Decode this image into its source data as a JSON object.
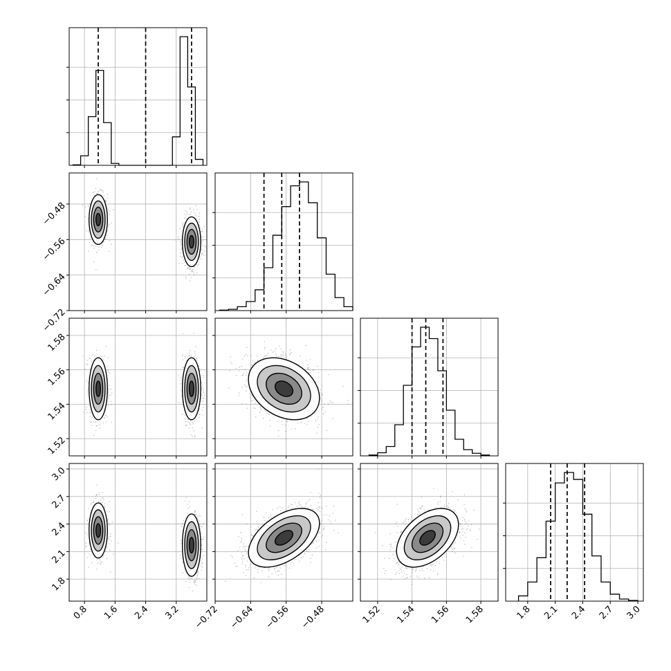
{
  "chart_data": {
    "type": "corner",
    "parameters": 4,
    "quantile_lines": "dashed",
    "grid": true,
    "axes": {
      "p0": {
        "ticks": [
          0.8,
          1.6,
          2.4,
          3.2
        ],
        "tick_labels": [
          "0.8",
          "1.6",
          "2.4",
          "3.2"
        ],
        "range": [
          0.4,
          4.0
        ]
      },
      "p1": {
        "ticks": [
          -0.72,
          -0.64,
          -0.56,
          -0.48
        ],
        "tick_labels": [
          "−0.72",
          "−0.64",
          "−0.56",
          "−0.48"
        ],
        "range": [
          -0.72,
          -0.41
        ]
      },
      "p2": {
        "ticks": [
          1.52,
          1.54,
          1.56,
          1.58
        ],
        "tick_labels": [
          "1.52",
          "1.54",
          "1.56",
          "1.58"
        ],
        "range": [
          1.51,
          1.59
        ]
      },
      "p3": {
        "ticks": [
          1.8,
          2.1,
          2.4,
          2.7,
          3.0
        ],
        "tick_labels": [
          "1.8",
          "2.1",
          "2.4",
          "2.7",
          "3.0"
        ],
        "range": [
          1.56,
          3.06
        ]
      }
    },
    "diagonal": [
      {
        "param": "p0",
        "bin_edges": [
          0.5,
          0.7,
          0.9,
          1.1,
          1.3,
          1.5,
          1.7,
          1.9,
          2.1,
          2.3,
          2.5,
          2.7,
          2.9,
          3.1,
          3.3,
          3.5,
          3.7,
          3.9
        ],
        "counts": [
          2,
          40,
          205,
          400,
          180,
          8,
          0,
          0,
          0,
          0,
          0,
          0,
          0,
          120,
          542,
          330,
          25
        ],
        "quantiles": [
          1.16,
          2.4,
          3.6
        ]
      },
      {
        "param": "p1",
        "bin_edges": [
          -0.71,
          -0.69,
          -0.67,
          -0.65,
          -0.63,
          -0.61,
          -0.59,
          -0.57,
          -0.55,
          -0.53,
          -0.51,
          -0.49,
          -0.47,
          -0.45,
          -0.43,
          -0.41
        ],
        "counts": [
          4,
          10,
          30,
          70,
          160,
          330,
          580,
          800,
          960,
          990,
          830,
          560,
          280,
          100,
          30
        ],
        "quantiles": [
          -0.61,
          -0.57,
          -0.53
        ]
      },
      {
        "param": "p2",
        "bin_edges": [
          1.515,
          1.52,
          1.525,
          1.53,
          1.535,
          1.54,
          1.545,
          1.55,
          1.555,
          1.56,
          1.565,
          1.57,
          1.575,
          1.58,
          1.585
        ],
        "counts": [
          8,
          30,
          90,
          300,
          680,
          1050,
          1240,
          1130,
          820,
          440,
          160,
          60,
          25,
          8
        ],
        "quantiles": [
          1.54,
          1.548,
          1.558
        ]
      },
      {
        "param": "p3",
        "bin_edges": [
          1.7,
          1.8,
          1.9,
          2.0,
          2.1,
          2.2,
          2.3,
          2.4,
          2.5,
          2.6,
          2.7,
          2.8,
          2.9,
          3.0
        ],
        "counts": [
          30,
          110,
          250,
          460,
          680,
          740,
          700,
          500,
          260,
          110,
          40,
          12,
          4
        ],
        "quantiles": [
          2.05,
          2.23,
          2.42
        ]
      }
    ],
    "pairs": [
      {
        "x": "p0",
        "y": "p1",
        "modes": [
          {
            "cx": 1.16,
            "cy": -0.515,
            "sx": 0.12,
            "sy": 0.028,
            "rho": 0,
            "w": 0.45
          },
          {
            "cx": 3.6,
            "cy": -0.565,
            "sx": 0.12,
            "sy": 0.028,
            "rho": 0,
            "w": 0.55
          }
        ]
      },
      {
        "x": "p0",
        "y": "p2",
        "modes": [
          {
            "cx": 1.16,
            "cy": 1.549,
            "sx": 0.12,
            "sy": 0.009,
            "rho": 0,
            "w": 0.45
          },
          {
            "cx": 3.6,
            "cy": 1.549,
            "sx": 0.12,
            "sy": 0.009,
            "rho": 0,
            "w": 0.55
          }
        ]
      },
      {
        "x": "p0",
        "y": "p3",
        "modes": [
          {
            "cx": 1.16,
            "cy": 2.33,
            "sx": 0.12,
            "sy": 0.15,
            "rho": 0,
            "w": 0.45
          },
          {
            "cx": 3.6,
            "cy": 2.17,
            "sx": 0.12,
            "sy": 0.17,
            "rho": 0,
            "w": 0.55
          }
        ]
      },
      {
        "x": "p1",
        "y": "p2",
        "modes": [
          {
            "cx": -0.565,
            "cy": 1.549,
            "sx": 0.04,
            "sy": 0.009,
            "rho": -0.3,
            "w": 1
          }
        ]
      },
      {
        "x": "p1",
        "y": "p3",
        "modes": [
          {
            "cx": -0.565,
            "cy": 2.25,
            "sx": 0.04,
            "sy": 0.16,
            "rho": 0.5,
            "w": 1
          }
        ]
      },
      {
        "x": "p2",
        "y": "p3",
        "modes": [
          {
            "cx": 1.549,
            "cy": 2.25,
            "sx": 0.009,
            "sy": 0.16,
            "rho": 0.45,
            "w": 1
          }
        ]
      }
    ]
  }
}
